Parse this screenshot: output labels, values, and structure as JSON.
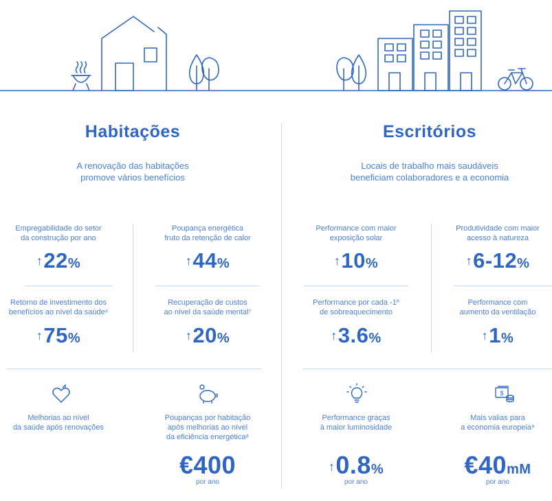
{
  "colors": {
    "accent": "#2f66c4",
    "light": "#4a7fd6",
    "divider": "#c9d8f1"
  },
  "left": {
    "title": "Habitações",
    "subtitle": "A renovação das habitações\npromove vários benefícios",
    "stats": [
      {
        "label": "Empregabilidade do setor\nda construção por ano",
        "arrow": "↑",
        "number": "22",
        "unit": "%"
      },
      {
        "label": "Poupança energética\nfruto da retenção de calor",
        "arrow": "↑",
        "number": "44",
        "unit": "%"
      },
      {
        "label": "Retorno de investimento dos\nbenefícios ao nível da saúde⁶",
        "arrow": "↑",
        "number": "75",
        "unit": "%"
      },
      {
        "label": "Recuperação de custos\nao nível da saúde mental⁷",
        "arrow": "↑",
        "number": "20",
        "unit": "%"
      }
    ],
    "bottom": [
      {
        "icon": "heart-icon",
        "label": "Melhorias ao nível\nda saúde após renovações"
      },
      {
        "icon": "piggy-bank-icon",
        "label": "Poupanças por habitação\napós melhorias ao nível\nda eficiência energética⁸",
        "prefix": "€",
        "number": "400",
        "unit": "",
        "note": "por ano"
      }
    ]
  },
  "right": {
    "title": "Escritórios",
    "subtitle": "Locais de trabalho mais saudáveis\nbeneficiam colaboradores e a economia",
    "stats": [
      {
        "label": "Performance com maior\nexposição solar",
        "arrow": "↑",
        "number": "10",
        "unit": "%"
      },
      {
        "label": "Produtividade com maior\nacesso à natureza",
        "arrow": "↑",
        "number": "6-12",
        "unit": "%"
      },
      {
        "label": "Performance por cada -1º\nde sobreaquecimento",
        "arrow": "↑",
        "number": "3.6",
        "unit": "%"
      },
      {
        "label": "Performance com\naumento da ventilação",
        "arrow": "↑",
        "number": "1",
        "unit": "%"
      }
    ],
    "bottom": [
      {
        "icon": "lightbulb-icon",
        "label": "Performance graças\nà maior luminosidade",
        "arrow": "↑",
        "number": "0.8",
        "unit": "%",
        "note": "por ano"
      },
      {
        "icon": "money-stack-icon",
        "label": "Mais valias para\na economia europeia⁹",
        "prefix": "€",
        "number": "40",
        "unit": "mM",
        "note": "por ano"
      }
    ]
  }
}
